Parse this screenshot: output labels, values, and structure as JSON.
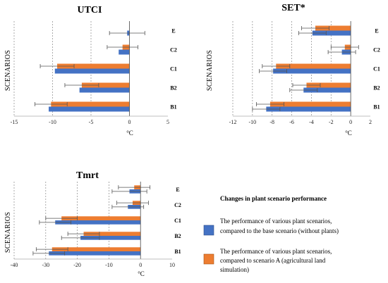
{
  "legend": {
    "title": "Changes in plant scenario performance",
    "items": [
      {
        "lines": [
          "The performance of various plant scenarios,",
          "compared to the base scenario (without plants)"
        ],
        "color": "#4472C4"
      },
      {
        "lines": [
          "The performance of various plant scenarios,",
          "compared to scenario A (agricultural land",
          "simulation)"
        ],
        "color": "#ED7D31"
      }
    ]
  },
  "chart_data": [
    {
      "type": "bar",
      "orientation": "horizontal",
      "title": "UTCI",
      "xlabel": "°C",
      "ylabel": "SCENARIOS",
      "xlim": [
        -15,
        5
      ],
      "xticks": [
        -15,
        -10,
        -5,
        0,
        5
      ],
      "grid": "vertical dashed",
      "categories": [
        "E",
        "C2",
        "C1",
        "B2",
        "B1"
      ],
      "series": [
        {
          "color": "#ED7D31",
          "values": [
            0,
            -0.9,
            -9.4,
            -6.2,
            -10.2
          ],
          "errors": [
            0,
            2.0,
            2.2,
            2.2,
            2.1
          ]
        },
        {
          "color": "#4472C4",
          "values": [
            -0.3,
            -1.4,
            -9.7,
            -6.5,
            -10.5
          ],
          "errors": [
            2.3,
            0,
            0,
            0,
            0
          ]
        }
      ]
    },
    {
      "type": "bar",
      "orientation": "horizontal",
      "title": "SET*",
      "xlabel": "°C",
      "ylabel": "SCENARIOS",
      "xlim": [
        -12,
        2
      ],
      "xticks": [
        -12,
        -10,
        -8,
        -6,
        -4,
        -2,
        0,
        2
      ],
      "grid": "vertical dashed",
      "categories": [
        "E",
        "C2",
        "C1",
        "B2",
        "B1"
      ],
      "series": [
        {
          "color": "#ED7D31",
          "values": [
            -3.6,
            -0.6,
            -7.6,
            -4.5,
            -8.2
          ],
          "errors": [
            1.4,
            1.4,
            1.4,
            1.4,
            1.4
          ]
        },
        {
          "color": "#4472C4",
          "values": [
            -3.9,
            -0.9,
            -7.9,
            -4.8,
            -8.6
          ],
          "errors": [
            1.4,
            1.4,
            1.4,
            1.4,
            1.4
          ]
        }
      ]
    },
    {
      "type": "bar",
      "orientation": "horizontal",
      "title": "Tmrt",
      "xlabel": "°C",
      "ylabel": "SCENARIOS",
      "xlim": [
        -40,
        10
      ],
      "xticks": [
        -40,
        -30,
        -20,
        -10,
        0,
        10
      ],
      "grid": "vertical dashed",
      "categories": [
        "E",
        "C2",
        "C1",
        "B2",
        "B1"
      ],
      "series": [
        {
          "color": "#ED7D31",
          "values": [
            -2,
            -2.5,
            -25,
            -18,
            -28
          ],
          "errors": [
            5,
            5,
            5,
            5,
            5
          ]
        },
        {
          "color": "#4472C4",
          "values": [
            -3.5,
            -4,
            -27,
            -19,
            -29
          ],
          "errors": [
            5.5,
            5,
            5,
            6,
            5
          ]
        }
      ]
    }
  ]
}
